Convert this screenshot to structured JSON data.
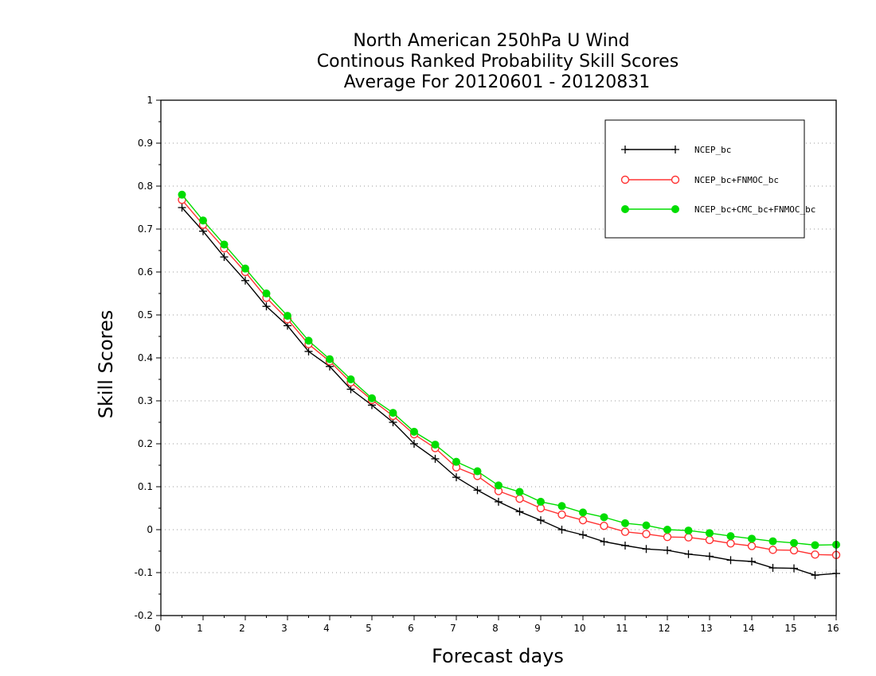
{
  "chart_data": {
    "type": "line",
    "title_lines": [
      "North American 250hPa U Wind",
      "Continous Ranked Probability Skill Scores",
      "Average For 20120601 - 20120831"
    ],
    "xlabel": "Forecast days",
    "ylabel": "Skill Scores",
    "xlim": [
      0,
      16
    ],
    "ylim": [
      -0.2,
      1
    ],
    "x_ticks": [
      0,
      1,
      2,
      3,
      4,
      5,
      6,
      7,
      8,
      9,
      10,
      11,
      12,
      13,
      14,
      15,
      16
    ],
    "y_ticks": [
      -0.2,
      -0.1,
      0,
      0.1,
      0.2,
      0.3,
      0.4,
      0.5,
      0.6,
      0.7,
      0.8,
      0.9,
      1
    ],
    "y_tick_labels": [
      "-0.2",
      "-0.1",
      "0",
      "0.1",
      "0.2",
      "0.3",
      "0.4",
      "0.5",
      "0.6",
      "0.7",
      "0.8",
      "0.9",
      "1"
    ],
    "grid": "horizontal dotted",
    "legend_position": "top-right",
    "x": [
      0.5,
      1.0,
      1.5,
      2.0,
      2.5,
      3.0,
      3.5,
      4.0,
      4.5,
      5.0,
      5.5,
      6.0,
      6.5,
      7.0,
      7.5,
      8.0,
      8.5,
      9.0,
      9.5,
      10.0,
      10.5,
      11.0,
      11.5,
      12.0,
      12.5,
      13.0,
      13.5,
      14.0,
      14.5,
      15.0,
      15.5,
      16.0
    ],
    "series": [
      {
        "name": "NCEP_bc",
        "color": "#000000",
        "marker": "plus",
        "values": [
          0.75,
          0.695,
          0.635,
          0.58,
          0.52,
          0.475,
          0.415,
          0.38,
          0.327,
          0.29,
          0.25,
          0.2,
          0.165,
          0.122,
          0.092,
          0.065,
          0.042,
          0.022,
          0.0,
          -0.012,
          -0.028,
          -0.037,
          -0.045,
          -0.048,
          -0.057,
          -0.062,
          -0.071,
          -0.074,
          -0.089,
          -0.09,
          -0.106,
          -0.102
        ]
      },
      {
        "name": "NCEP_bc+FNMOC_bc",
        "color": "#ff3333",
        "marker": "open-circle",
        "values": [
          0.768,
          0.71,
          0.655,
          0.6,
          0.54,
          0.49,
          0.432,
          0.392,
          0.343,
          0.302,
          0.265,
          0.222,
          0.19,
          0.145,
          0.125,
          0.09,
          0.072,
          0.05,
          0.035,
          0.022,
          0.009,
          -0.005,
          -0.01,
          -0.017,
          -0.018,
          -0.024,
          -0.032,
          -0.038,
          -0.047,
          -0.048,
          -0.058,
          -0.059
        ]
      },
      {
        "name": "NCEP_bc+CMC_bc+FNMOC_bc",
        "color": "#00dd00",
        "marker": "filled-circle",
        "values": [
          0.78,
          0.72,
          0.664,
          0.608,
          0.55,
          0.498,
          0.44,
          0.397,
          0.35,
          0.306,
          0.272,
          0.228,
          0.198,
          0.158,
          0.136,
          0.103,
          0.088,
          0.065,
          0.055,
          0.04,
          0.029,
          0.015,
          0.01,
          0.0,
          -0.002,
          -0.008,
          -0.015,
          -0.021,
          -0.027,
          -0.031,
          -0.036,
          -0.035
        ]
      }
    ]
  }
}
